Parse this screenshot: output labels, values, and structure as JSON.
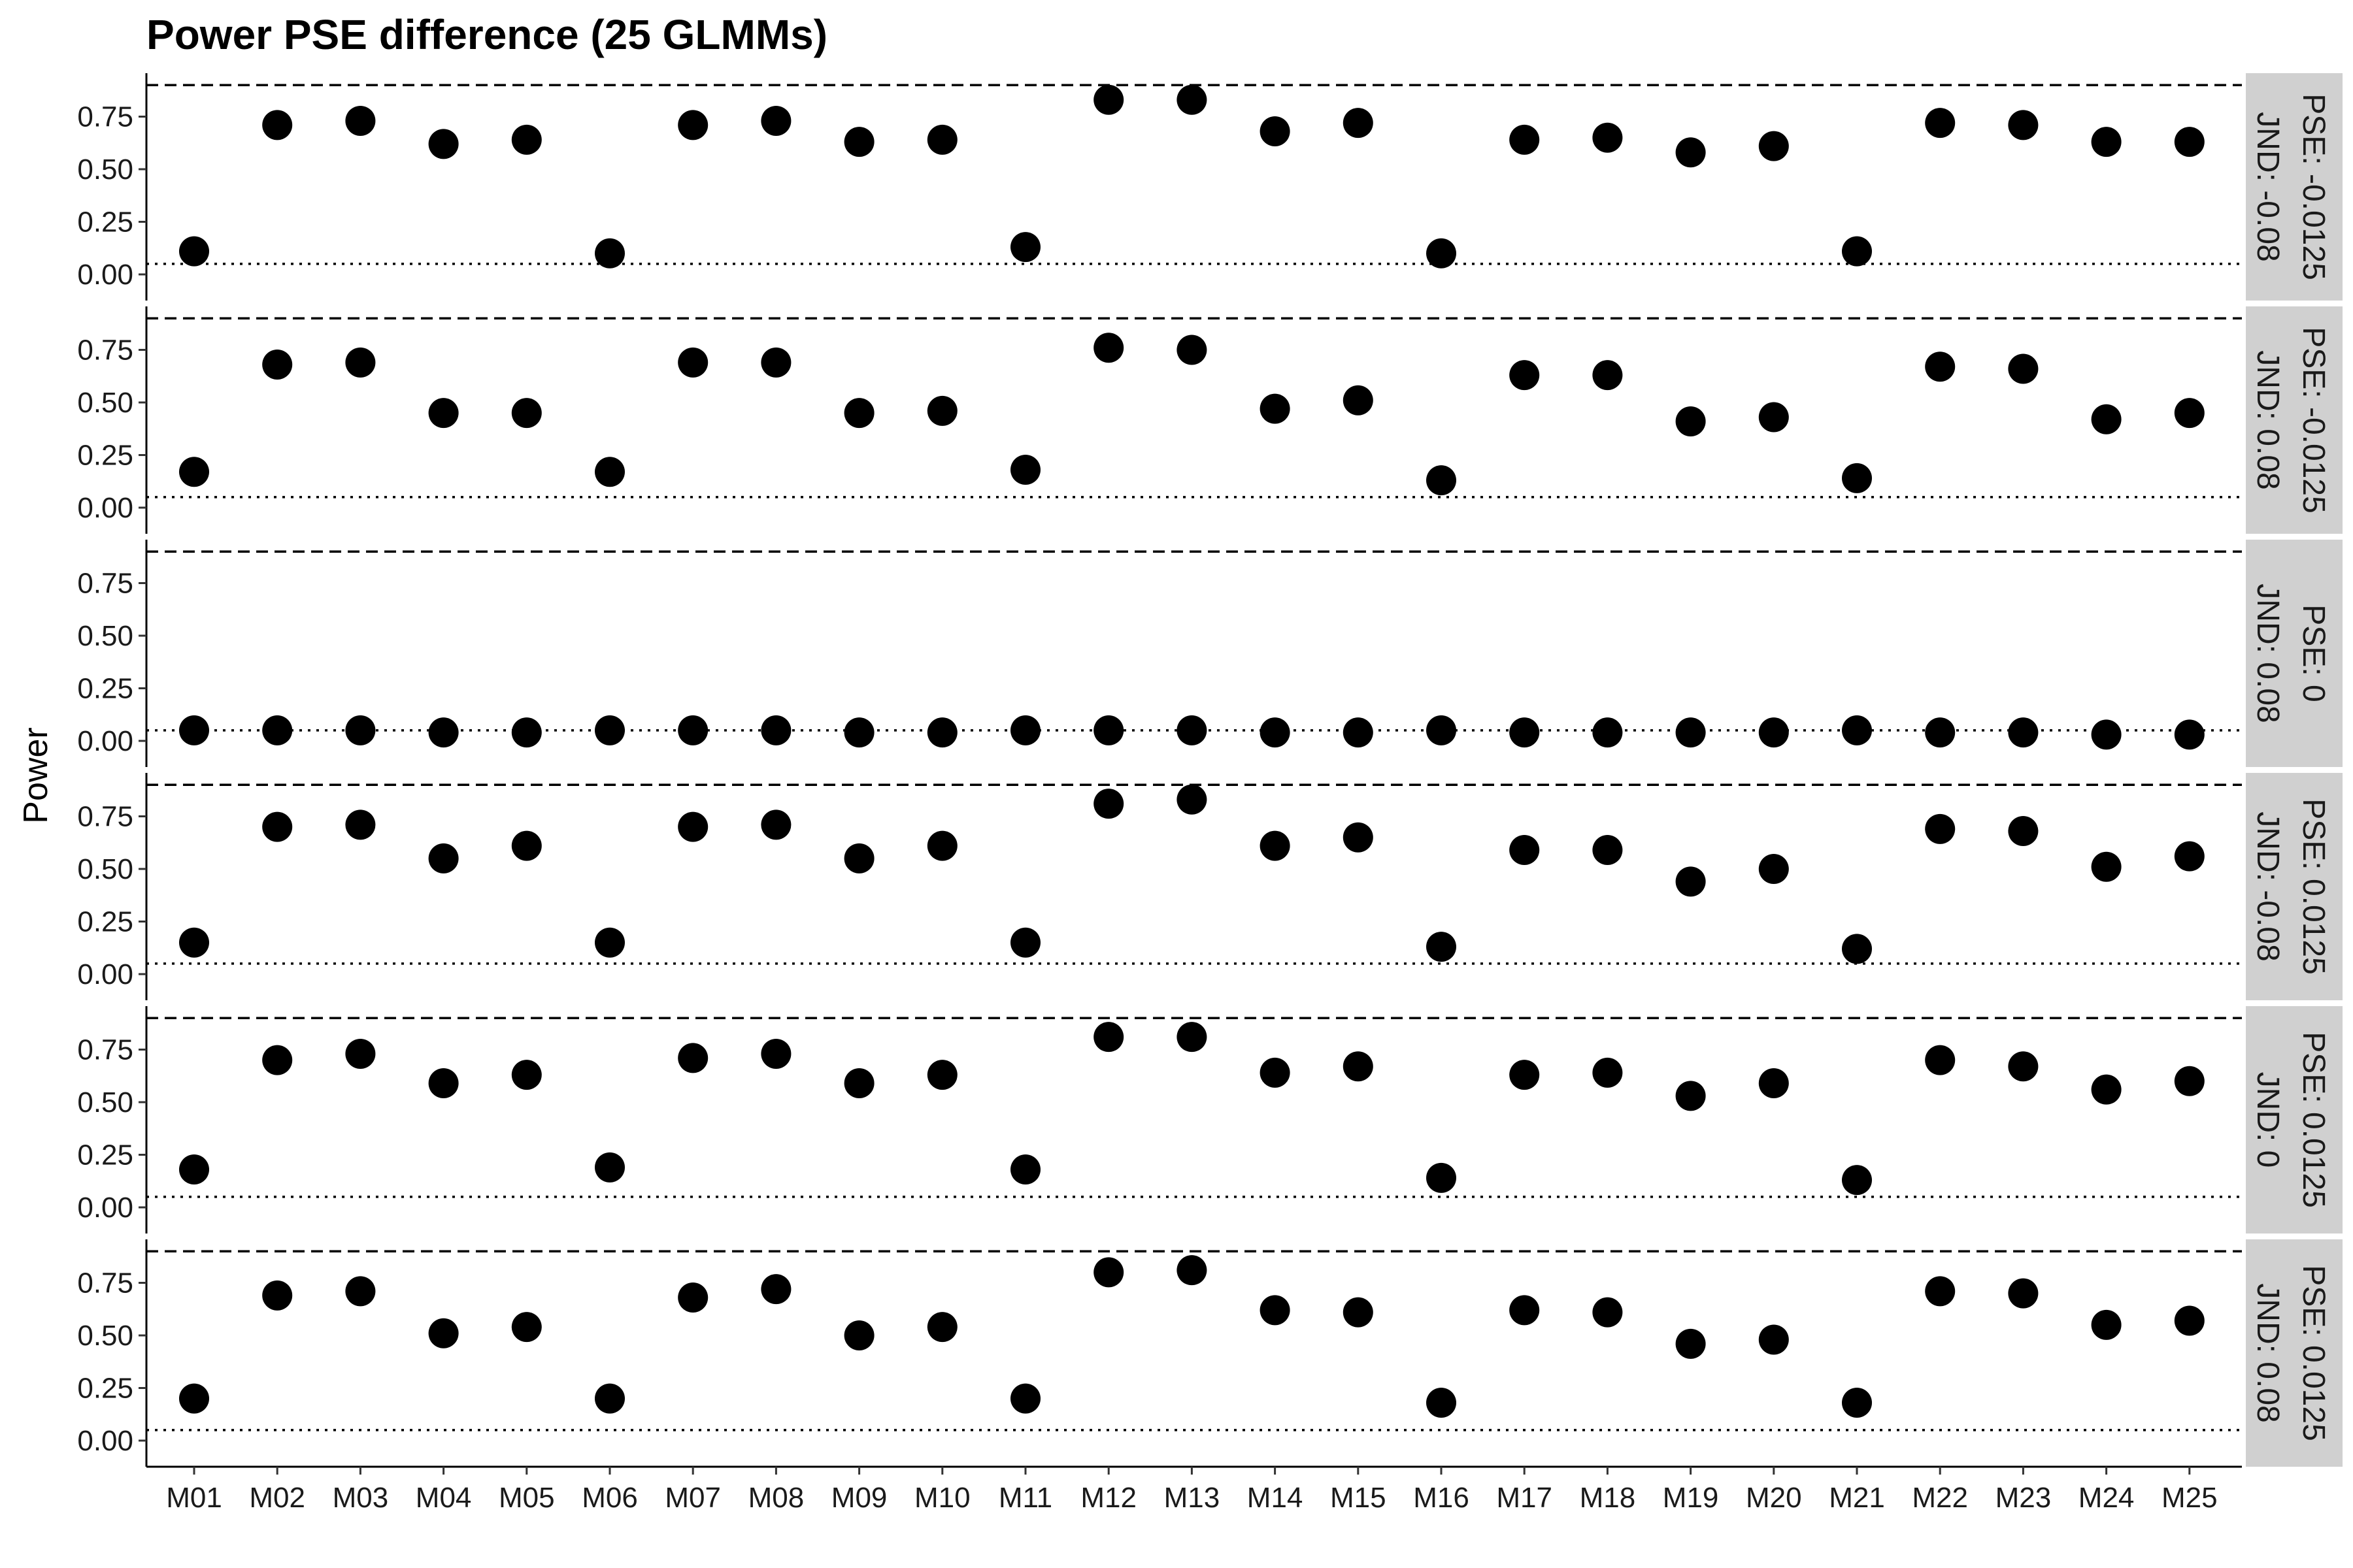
{
  "chart_data": {
    "type": "scatter",
    "title": "Power PSE difference (25 GLMMs)",
    "xlabel": "",
    "ylabel": "Power",
    "ylim": [
      0,
      0.9
    ],
    "yticks": [
      "0.00",
      "0.25",
      "0.50",
      "0.75"
    ],
    "ytick_values": [
      0,
      0.25,
      0.5,
      0.75
    ],
    "reference_lines": {
      "dashed": 0.9,
      "dotted": 0.05
    },
    "grid": false,
    "categories": [
      "M01",
      "M02",
      "M03",
      "M04",
      "M05",
      "M06",
      "M07",
      "M08",
      "M09",
      "M10",
      "M11",
      "M12",
      "M13",
      "M14",
      "M15",
      "M16",
      "M17",
      "M18",
      "M19",
      "M20",
      "M21",
      "M22",
      "M23",
      "M24",
      "M25"
    ],
    "panels": [
      {
        "strip": [
          "PSE: -0.0125",
          "JND: -0.08"
        ],
        "values": [
          0.11,
          0.71,
          0.73,
          0.62,
          0.64,
          0.1,
          0.71,
          0.73,
          0.63,
          0.64,
          0.13,
          0.83,
          0.83,
          0.68,
          0.72,
          0.1,
          0.64,
          0.65,
          0.58,
          0.61,
          0.11,
          0.72,
          0.71,
          0.63,
          0.63
        ]
      },
      {
        "strip": [
          "PSE: -0.0125",
          "JND: 0.08"
        ],
        "values": [
          0.17,
          0.68,
          0.69,
          0.45,
          0.45,
          0.17,
          0.69,
          0.69,
          0.45,
          0.46,
          0.18,
          0.76,
          0.75,
          0.47,
          0.51,
          0.13,
          0.63,
          0.63,
          0.41,
          0.43,
          0.14,
          0.67,
          0.66,
          0.42,
          0.45
        ]
      },
      {
        "strip": [
          "PSE: 0",
          "JND: 0.08"
        ],
        "values": [
          0.05,
          0.05,
          0.05,
          0.04,
          0.04,
          0.05,
          0.05,
          0.05,
          0.04,
          0.04,
          0.05,
          0.05,
          0.05,
          0.04,
          0.04,
          0.05,
          0.04,
          0.04,
          0.04,
          0.04,
          0.05,
          0.04,
          0.04,
          0.03,
          0.03
        ]
      },
      {
        "strip": [
          "PSE: 0.0125",
          "JND: -0.08"
        ],
        "values": [
          0.15,
          0.7,
          0.71,
          0.55,
          0.61,
          0.15,
          0.7,
          0.71,
          0.55,
          0.61,
          0.15,
          0.81,
          0.83,
          0.61,
          0.65,
          0.13,
          0.59,
          0.59,
          0.44,
          0.5,
          0.12,
          0.69,
          0.68,
          0.51,
          0.56
        ]
      },
      {
        "strip": [
          "PSE: 0.0125",
          "JND: 0"
        ],
        "values": [
          0.18,
          0.7,
          0.73,
          0.59,
          0.63,
          0.19,
          0.71,
          0.73,
          0.59,
          0.63,
          0.18,
          0.81,
          0.81,
          0.64,
          0.67,
          0.14,
          0.63,
          0.64,
          0.53,
          0.59,
          0.13,
          0.7,
          0.67,
          0.56,
          0.6
        ]
      },
      {
        "strip": [
          "PSE: 0.0125",
          "JND: 0.08"
        ],
        "values": [
          0.2,
          0.69,
          0.71,
          0.51,
          0.54,
          0.2,
          0.68,
          0.72,
          0.5,
          0.54,
          0.2,
          0.8,
          0.81,
          0.62,
          0.61,
          0.18,
          0.62,
          0.61,
          0.46,
          0.48,
          0.18,
          0.71,
          0.7,
          0.55,
          0.57
        ]
      }
    ]
  }
}
